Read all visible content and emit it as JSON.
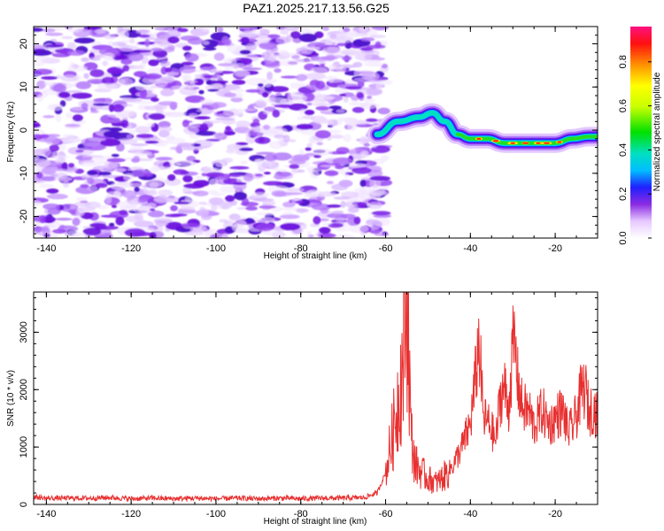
{
  "title": "PAZ1.2025.217.13.56.G25",
  "chart_data": [
    {
      "type": "heatmap",
      "xlabel": "Height of straight line (km)",
      "ylabel": "Frequency (Hz)",
      "xlim": [
        -143,
        -10
      ],
      "ylim": [
        -25,
        24
      ],
      "x_ticks": [
        -140,
        -120,
        -100,
        -80,
        -60,
        -40,
        -20
      ],
      "y_ticks": [
        20,
        10,
        0,
        -10,
        -20
      ],
      "noise_region_x": [
        -143,
        -60
      ],
      "signal_track": {
        "x": [
          -62,
          -57,
          -52,
          -49,
          -46,
          -43,
          -40,
          -36,
          -32,
          -28,
          -24,
          -20,
          -16,
          -12,
          -10
        ],
        "y": [
          -1,
          2,
          3,
          4,
          2,
          -1,
          -2,
          -2,
          -3,
          -3,
          -3,
          -3,
          -2,
          -1.5,
          -1.5
        ]
      },
      "colorbar": {
        "label": "Normalized spectral amplitude",
        "ticks": [
          0.0,
          0.2,
          0.4,
          0.6,
          0.8
        ],
        "range": [
          0,
          0.96
        ]
      }
    },
    {
      "type": "line",
      "xlabel": "Height of straight line (km)",
      "ylabel": "SNR (10 * v/v)",
      "xlim": [
        -143,
        -10
      ],
      "ylim": [
        0,
        3700
      ],
      "x_ticks": [
        -140,
        -120,
        -100,
        -80,
        -60,
        -40,
        -20
      ],
      "y_ticks": [
        0,
        1000,
        2000,
        3000
      ],
      "series": [
        {
          "x": [
            -143,
            -140,
            -135,
            -130,
            -125,
            -120,
            -115,
            -110,
            -105,
            -100,
            -95,
            -90,
            -85,
            -80,
            -75,
            -70,
            -65,
            -62,
            -60,
            -58,
            -56,
            -55,
            -54.5,
            -54,
            -53,
            -52,
            -50,
            -48,
            -46,
            -44,
            -42,
            -40,
            -39,
            -38,
            -37.5,
            -37,
            -36,
            -35,
            -34,
            -33,
            -32,
            -31,
            -30,
            -29.5,
            -29,
            -28,
            -27,
            -26,
            -25,
            -24,
            -23,
            -22,
            -21,
            -20,
            -19,
            -18,
            -17,
            -16,
            -15,
            -14,
            -13,
            -12,
            -11,
            -10
          ],
          "y": [
            130,
            110,
            110,
            110,
            120,
            100,
            110,
            100,
            110,
            100,
            110,
            100,
            110,
            100,
            110,
            110,
            120,
            200,
            550,
            1350,
            2400,
            3700,
            2700,
            1200,
            700,
            600,
            450,
            380,
            500,
            700,
            1000,
            1400,
            2050,
            2850,
            2300,
            1500,
            1450,
            1300,
            1100,
            1850,
            2050,
            1650,
            2700,
            2800,
            2250,
            1750,
            1650,
            1600,
            1350,
            1500,
            1650,
            1450,
            1400,
            1500,
            1600,
            1600,
            1250,
            1350,
            1550,
            1900,
            2050,
            1600,
            1700,
            1500
          ],
          "color": "#e83030"
        }
      ]
    }
  ]
}
